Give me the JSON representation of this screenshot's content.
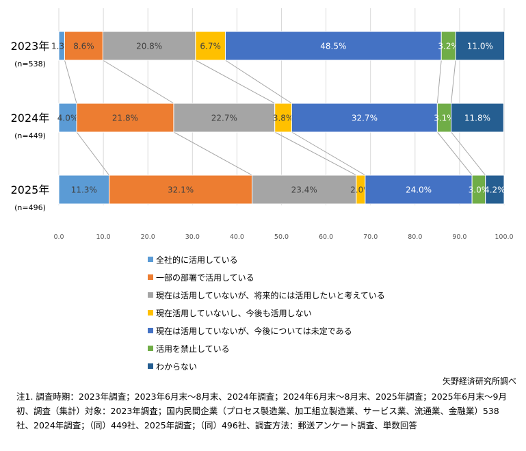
{
  "chart_data": {
    "type": "bar",
    "orientation": "horizontal-stacked-100",
    "categories": [
      {
        "year": "2023年",
        "n": "(n=538)"
      },
      {
        "year": "2024年",
        "n": "(n=449)"
      },
      {
        "year": "2025年",
        "n": "(n=496)"
      }
    ],
    "series": [
      {
        "name": "全社的に活用している",
        "color": "#5B9BD5",
        "values": [
          1.3,
          4.0,
          11.3
        ]
      },
      {
        "name": "一部の部署で活用している",
        "color": "#ED7D31",
        "values": [
          8.6,
          21.8,
          32.1
        ]
      },
      {
        "name": "現在は活用していないが、将来的には活用したいと考えている",
        "color": "#A5A5A5",
        "values": [
          20.8,
          22.7,
          23.4
        ]
      },
      {
        "name": "現在活用していないし、今後も活用しない",
        "color": "#FFC000",
        "values": [
          6.7,
          3.8,
          2.0
        ]
      },
      {
        "name": "現在は活用していないが、今後については未定である",
        "color": "#4472C4",
        "values": [
          48.5,
          32.7,
          24.0
        ]
      },
      {
        "name": "活用を禁止している",
        "color": "#70AD47",
        "values": [
          3.2,
          3.1,
          3.0
        ]
      },
      {
        "name": "わからない",
        "color": "#255E91",
        "values": [
          11.0,
          11.8,
          4.2
        ]
      }
    ],
    "xlim": [
      0,
      100
    ],
    "xticks": [
      "0.0",
      "10.0",
      "20.0",
      "30.0",
      "40.0",
      "50.0",
      "60.0",
      "70.0",
      "80.0",
      "90.0",
      "100.0"
    ],
    "grid": true,
    "legend": "bottom",
    "series_lines": true
  },
  "source": "矢野経済研究所調べ",
  "note": "注1. 調査時期：2023年調査；2023年6月末～8月末、2024年調査；2024年6月末～8月末、2025年調査；2025年6月末～9月初、調査（集計）対象：2023年調査；国内民間企業（プロセス製造業、加工組立製造業、サービス業、流通業、金融業）538社、2024年調査；（同）449社、2025年調査；（同）496社、調査方法：郵送アンケート調査、単数回答"
}
